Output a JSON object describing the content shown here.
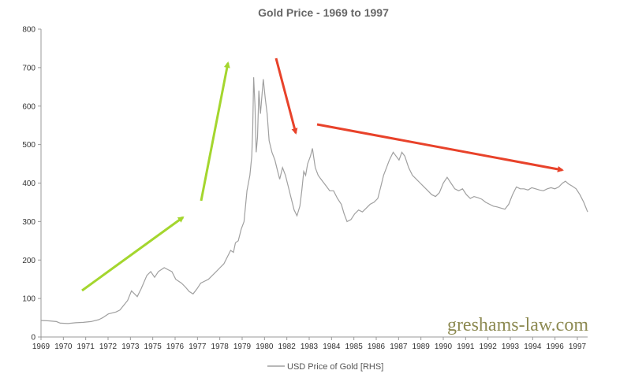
{
  "chart_data": {
    "type": "line",
    "title": "Gold Price - 1969 to 1997",
    "xlabel": "",
    "ylabel": "",
    "xlim": [
      1969,
      1997.4
    ],
    "ylim": [
      0,
      800
    ],
    "yticks": [
      0,
      100,
      200,
      300,
      400,
      500,
      600,
      700,
      800
    ],
    "xtick_labels": [
      "1969",
      "1970",
      "1971",
      "1972",
      "1973",
      "1975",
      "1976",
      "1977",
      "1978",
      "1979",
      "1980",
      "1982",
      "1983",
      "1984",
      "1985",
      "1986",
      "1987",
      "1989",
      "1990",
      "1991",
      "1992",
      "1993",
      "1994",
      "1996",
      "1997"
    ],
    "grid": false,
    "legend_position": "bottom",
    "series": [
      {
        "name": "USD Price of Gold [RHS]",
        "color": "#a0a0a0",
        "points": [
          [
            1969.0,
            43
          ],
          [
            1969.4,
            42
          ],
          [
            1969.8,
            40
          ],
          [
            1970.0,
            36
          ],
          [
            1970.4,
            35
          ],
          [
            1970.8,
            37
          ],
          [
            1971.2,
            38
          ],
          [
            1971.6,
            40
          ],
          [
            1972.0,
            45
          ],
          [
            1972.2,
            50
          ],
          [
            1972.5,
            60
          ],
          [
            1972.9,
            65
          ],
          [
            1973.1,
            70
          ],
          [
            1973.5,
            95
          ],
          [
            1973.7,
            120
          ],
          [
            1974.0,
            105
          ],
          [
            1974.2,
            125
          ],
          [
            1974.5,
            160
          ],
          [
            1974.7,
            170
          ],
          [
            1974.9,
            155
          ],
          [
            1975.1,
            170
          ],
          [
            1975.4,
            180
          ],
          [
            1975.6,
            175
          ],
          [
            1975.8,
            170
          ],
          [
            1976.0,
            150
          ],
          [
            1976.3,
            140
          ],
          [
            1976.5,
            130
          ],
          [
            1976.7,
            118
          ],
          [
            1976.9,
            112
          ],
          [
            1977.1,
            125
          ],
          [
            1977.3,
            140
          ],
          [
            1977.5,
            145
          ],
          [
            1977.7,
            150
          ],
          [
            1977.9,
            160
          ],
          [
            1978.1,
            170
          ],
          [
            1978.3,
            180
          ],
          [
            1978.5,
            190
          ],
          [
            1978.7,
            210
          ],
          [
            1978.85,
            225
          ],
          [
            1979.0,
            220
          ],
          [
            1979.1,
            245
          ],
          [
            1979.25,
            250
          ],
          [
            1979.4,
            280
          ],
          [
            1979.55,
            300
          ],
          [
            1979.7,
            380
          ],
          [
            1979.85,
            420
          ],
          [
            1979.95,
            470
          ],
          [
            1980.0,
            540
          ],
          [
            1980.05,
            675
          ],
          [
            1980.12,
            600
          ],
          [
            1980.18,
            480
          ],
          [
            1980.25,
            520
          ],
          [
            1980.32,
            640
          ],
          [
            1980.4,
            580
          ],
          [
            1980.5,
            640
          ],
          [
            1980.55,
            670
          ],
          [
            1980.65,
            620
          ],
          [
            1980.75,
            580
          ],
          [
            1980.85,
            510
          ],
          [
            1981.0,
            480
          ],
          [
            1981.15,
            460
          ],
          [
            1981.3,
            430
          ],
          [
            1981.4,
            410
          ],
          [
            1981.55,
            440
          ],
          [
            1981.7,
            420
          ],
          [
            1981.85,
            390
          ],
          [
            1982.0,
            360
          ],
          [
            1982.15,
            330
          ],
          [
            1982.3,
            315
          ],
          [
            1982.45,
            340
          ],
          [
            1982.55,
            380
          ],
          [
            1982.65,
            430
          ],
          [
            1982.75,
            420
          ],
          [
            1982.85,
            450
          ],
          [
            1983.0,
            470
          ],
          [
            1983.1,
            490
          ],
          [
            1983.25,
            440
          ],
          [
            1983.4,
            420
          ],
          [
            1983.55,
            410
          ],
          [
            1983.7,
            400
          ],
          [
            1983.85,
            390
          ],
          [
            1984.0,
            380
          ],
          [
            1984.2,
            380
          ],
          [
            1984.4,
            360
          ],
          [
            1984.6,
            345
          ],
          [
            1984.75,
            320
          ],
          [
            1984.9,
            300
          ],
          [
            1985.1,
            305
          ],
          [
            1985.3,
            320
          ],
          [
            1985.5,
            330
          ],
          [
            1985.7,
            325
          ],
          [
            1985.9,
            335
          ],
          [
            1986.1,
            345
          ],
          [
            1986.3,
            350
          ],
          [
            1986.5,
            360
          ],
          [
            1986.65,
            390
          ],
          [
            1986.8,
            420
          ],
          [
            1986.95,
            440
          ],
          [
            1987.1,
            460
          ],
          [
            1987.3,
            480
          ],
          [
            1987.45,
            470
          ],
          [
            1987.6,
            460
          ],
          [
            1987.75,
            480
          ],
          [
            1987.9,
            470
          ],
          [
            1988.1,
            440
          ],
          [
            1988.3,
            420
          ],
          [
            1988.5,
            410
          ],
          [
            1988.7,
            400
          ],
          [
            1988.9,
            390
          ],
          [
            1989.1,
            380
          ],
          [
            1989.3,
            370
          ],
          [
            1989.5,
            365
          ],
          [
            1989.7,
            375
          ],
          [
            1989.9,
            400
          ],
          [
            1990.1,
            415
          ],
          [
            1990.3,
            400
          ],
          [
            1990.5,
            385
          ],
          [
            1990.7,
            380
          ],
          [
            1990.9,
            385
          ],
          [
            1991.1,
            370
          ],
          [
            1991.3,
            360
          ],
          [
            1991.5,
            365
          ],
          [
            1991.7,
            362
          ],
          [
            1991.9,
            358
          ],
          [
            1992.1,
            350
          ],
          [
            1992.3,
            345
          ],
          [
            1992.5,
            340
          ],
          [
            1992.7,
            338
          ],
          [
            1992.9,
            335
          ],
          [
            1993.1,
            332
          ],
          [
            1993.3,
            345
          ],
          [
            1993.5,
            370
          ],
          [
            1993.7,
            390
          ],
          [
            1993.9,
            385
          ],
          [
            1994.1,
            385
          ],
          [
            1994.3,
            382
          ],
          [
            1994.5,
            388
          ],
          [
            1994.7,
            385
          ],
          [
            1994.9,
            382
          ],
          [
            1995.1,
            380
          ],
          [
            1995.3,
            385
          ],
          [
            1995.5,
            388
          ],
          [
            1995.7,
            385
          ],
          [
            1995.9,
            390
          ],
          [
            1996.1,
            400
          ],
          [
            1996.25,
            405
          ],
          [
            1996.4,
            398
          ],
          [
            1996.6,
            392
          ],
          [
            1996.8,
            385
          ],
          [
            1997.0,
            370
          ],
          [
            1997.2,
            350
          ],
          [
            1997.4,
            325
          ]
        ]
      }
    ]
  },
  "annotations": {
    "watermark": "greshams-law.com",
    "green_color": "#a4d62e",
    "red_color": "#e8422a"
  }
}
